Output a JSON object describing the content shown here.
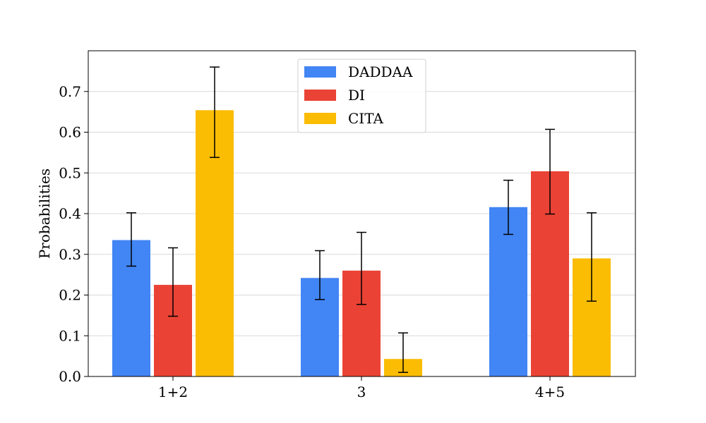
{
  "chart_data": {
    "type": "bar",
    "title": "",
    "xlabel": "",
    "ylabel": "Probabilities",
    "categories": [
      "1+2",
      "3",
      "4+5"
    ],
    "ylim": [
      0,
      0.8
    ],
    "yticks": [
      "0.0",
      "0.1",
      "0.2",
      "0.3",
      "0.4",
      "0.5",
      "0.6",
      "0.7"
    ],
    "grid": "horizontal",
    "legend_position": "top-center",
    "series": [
      {
        "name": "DADDAA",
        "color": "#4285f4",
        "values": [
          0.335,
          0.242,
          0.416
        ],
        "err_low": [
          0.271,
          0.189,
          0.349
        ],
        "err_high": [
          0.402,
          0.309,
          0.482
        ]
      },
      {
        "name": "DI",
        "color": "#ea4335",
        "values": [
          0.225,
          0.26,
          0.504
        ],
        "err_low": [
          0.148,
          0.177,
          0.399
        ],
        "err_high": [
          0.316,
          0.354,
          0.607
        ]
      },
      {
        "name": "CITA",
        "color": "#fbbc04",
        "values": [
          0.654,
          0.043,
          0.29
        ],
        "err_low": [
          0.538,
          0.01,
          0.185
        ],
        "err_high": [
          0.76,
          0.107,
          0.402
        ]
      }
    ]
  }
}
